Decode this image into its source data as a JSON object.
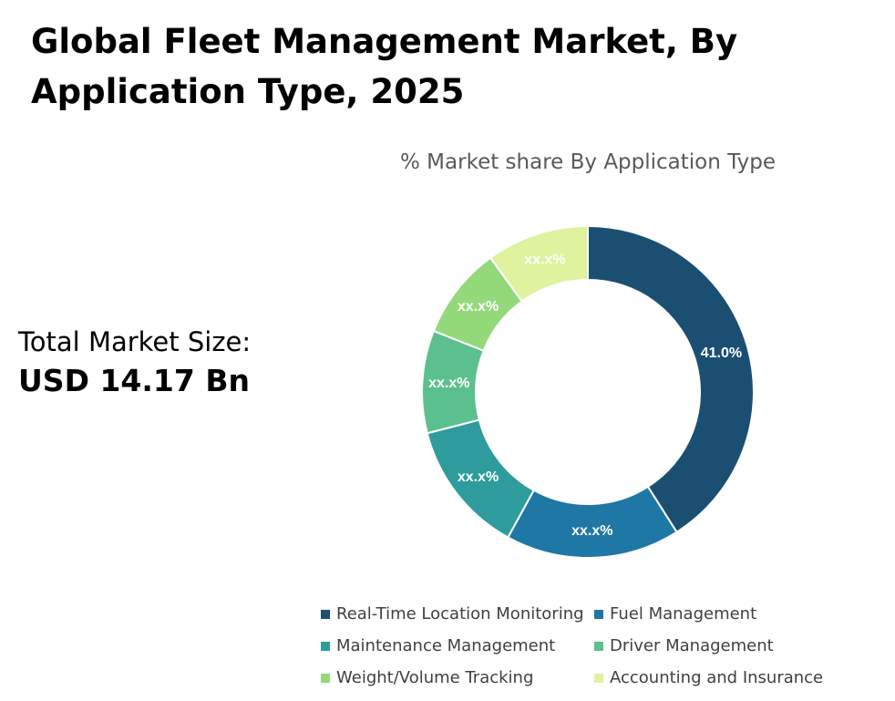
{
  "chart_data": {
    "type": "pie",
    "style": "donut",
    "title": "Global Fleet Management Market, By Application Type, 2025",
    "subtitle": "% Market share By Application Type",
    "total_label": "Total Market Size:",
    "total_value": "USD 14.17 Bn",
    "categories": [
      "Real-Time Location Monitoring",
      "Fuel Management",
      "Maintenance Management",
      "Driver Management",
      "Weight/Volume Tracking",
      "Accounting and Insurance"
    ],
    "values": [
      41.0,
      17.0,
      13.0,
      10.0,
      9.0,
      10.0
    ],
    "labels": [
      "41.0%",
      "xx.x%",
      "xx.x%",
      "xx.x%",
      "xx.x%",
      "xx.x%"
    ],
    "colors": [
      "#1b4f72",
      "#1f77a5",
      "#2e9c9c",
      "#5cc08e",
      "#93d97a",
      "#dff29e"
    ],
    "legend_position": "bottom"
  }
}
